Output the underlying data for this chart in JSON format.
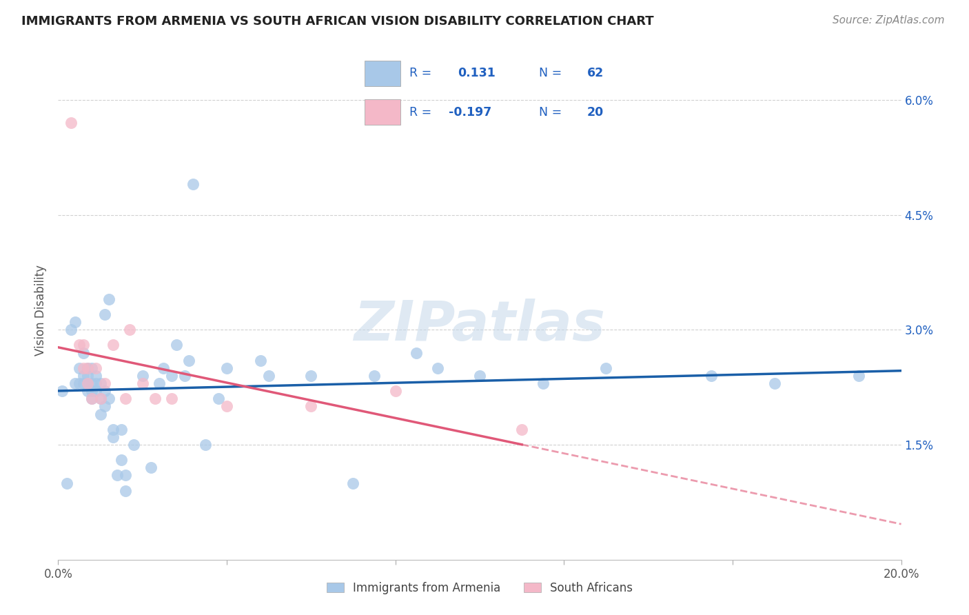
{
  "title": "IMMIGRANTS FROM ARMENIA VS SOUTH AFRICAN VISION DISABILITY CORRELATION CHART",
  "source": "Source: ZipAtlas.com",
  "ylabel": "Vision Disability",
  "xlim": [
    0.0,
    0.2
  ],
  "ylim": [
    0.0,
    0.065
  ],
  "blue_color": "#a8c8e8",
  "pink_color": "#f4b8c8",
  "blue_line_color": "#1a5fa8",
  "pink_line_color": "#e05878",
  "watermark": "ZIPatlas",
  "legend_text_color": "#2060c0",
  "legend_gray": "#444444",
  "blue_scatter_x": [
    0.001,
    0.002,
    0.003,
    0.004,
    0.004,
    0.005,
    0.005,
    0.006,
    0.006,
    0.006,
    0.007,
    0.007,
    0.007,
    0.007,
    0.008,
    0.008,
    0.008,
    0.008,
    0.009,
    0.009,
    0.009,
    0.01,
    0.01,
    0.01,
    0.011,
    0.011,
    0.011,
    0.012,
    0.012,
    0.013,
    0.013,
    0.014,
    0.015,
    0.015,
    0.016,
    0.016,
    0.018,
    0.02,
    0.022,
    0.024,
    0.025,
    0.027,
    0.028,
    0.03,
    0.031,
    0.032,
    0.035,
    0.038,
    0.04,
    0.048,
    0.05,
    0.06,
    0.07,
    0.075,
    0.085,
    0.09,
    0.1,
    0.115,
    0.13,
    0.155,
    0.17,
    0.19
  ],
  "blue_scatter_y": [
    0.022,
    0.01,
    0.03,
    0.023,
    0.031,
    0.023,
    0.025,
    0.023,
    0.024,
    0.027,
    0.022,
    0.023,
    0.024,
    0.025,
    0.021,
    0.022,
    0.023,
    0.025,
    0.022,
    0.023,
    0.024,
    0.019,
    0.021,
    0.023,
    0.02,
    0.022,
    0.032,
    0.021,
    0.034,
    0.016,
    0.017,
    0.011,
    0.013,
    0.017,
    0.009,
    0.011,
    0.015,
    0.024,
    0.012,
    0.023,
    0.025,
    0.024,
    0.028,
    0.024,
    0.026,
    0.049,
    0.015,
    0.021,
    0.025,
    0.026,
    0.024,
    0.024,
    0.01,
    0.024,
    0.027,
    0.025,
    0.024,
    0.023,
    0.025,
    0.024,
    0.023,
    0.024
  ],
  "pink_scatter_x": [
    0.003,
    0.005,
    0.006,
    0.006,
    0.007,
    0.007,
    0.008,
    0.009,
    0.01,
    0.011,
    0.013,
    0.016,
    0.017,
    0.02,
    0.023,
    0.027,
    0.04,
    0.06,
    0.08,
    0.11
  ],
  "pink_scatter_y": [
    0.057,
    0.028,
    0.025,
    0.028,
    0.023,
    0.025,
    0.021,
    0.025,
    0.021,
    0.023,
    0.028,
    0.021,
    0.03,
    0.023,
    0.021,
    0.021,
    0.02,
    0.02,
    0.022,
    0.017
  ]
}
